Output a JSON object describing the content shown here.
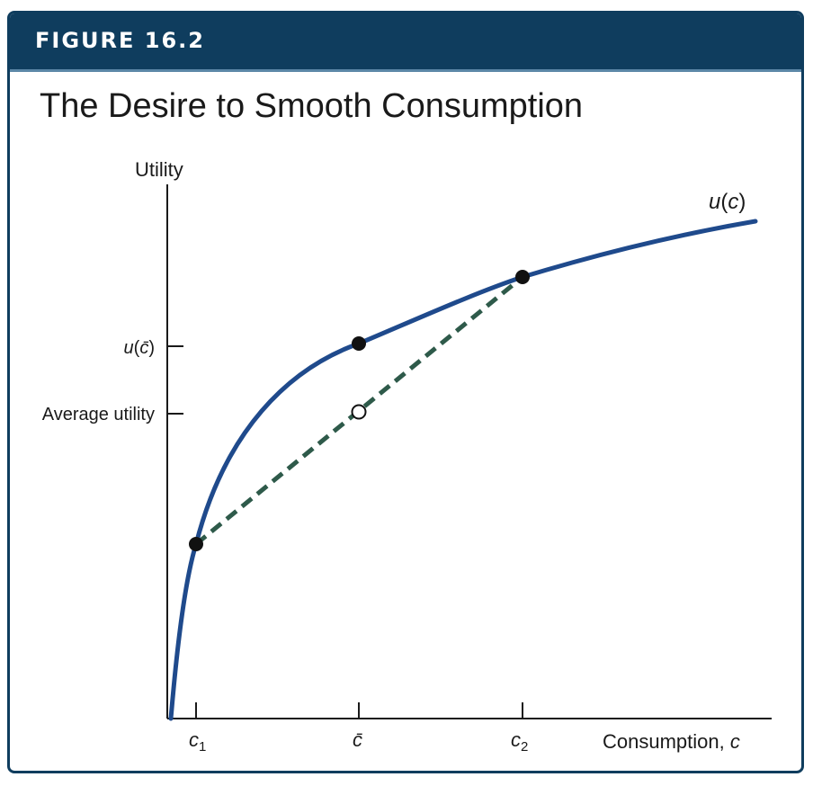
{
  "figure": {
    "label": "FIGURE 16.2",
    "title": "The Desire to Smooth Consumption"
  },
  "axes": {
    "y_label": "Utility",
    "x_label": "Consumption, c",
    "x_ticks": [
      "c1",
      "c̄",
      "c2"
    ],
    "y_ticks": [
      "u(c̄)",
      "Average utility"
    ]
  },
  "curve": {
    "label": "u(c)"
  },
  "colors": {
    "banner": "#0f3d5e",
    "curve": "#1f4a8c",
    "chord": "#2e5a4a",
    "axis": "#1a1a1a"
  },
  "chart_data": {
    "type": "line",
    "series": [
      {
        "name": "u(c)",
        "kind": "concave utility curve"
      },
      {
        "name": "",
        "kind": "dashed chord between (c1, u(c1)) and (c2, u(c2))"
      }
    ],
    "points": [
      {
        "x": "c1",
        "filled": true
      },
      {
        "x": "c̄",
        "filled": true,
        "y": "u(c̄)"
      },
      {
        "x": "c2",
        "filled": true
      },
      {
        "x": "c̄",
        "filled": false,
        "y": "Average utility"
      }
    ]
  }
}
